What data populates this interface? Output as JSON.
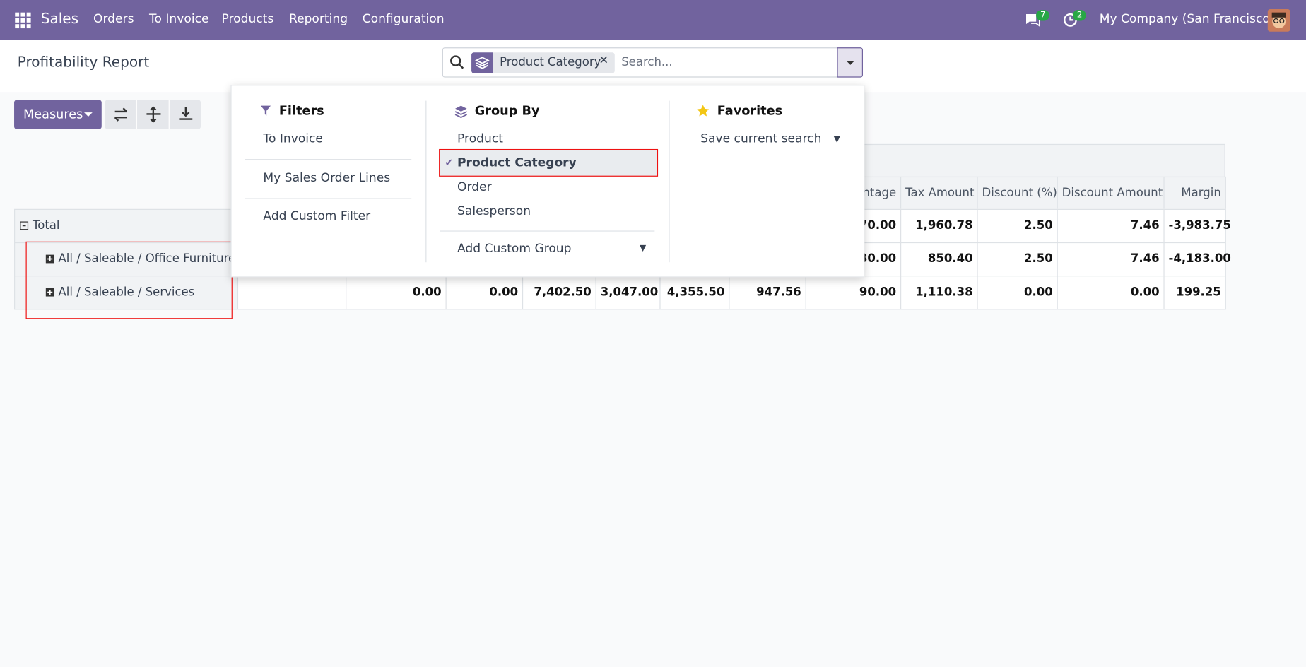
{
  "nav": {
    "app": "Sales",
    "menu": [
      "Orders",
      "To Invoice",
      "Products",
      "Reporting",
      "Configuration"
    ],
    "messages_badge": "7",
    "activity_badge": "2",
    "company": "My Company (San Francisco)"
  },
  "breadcrumb": "Profitability Report",
  "search": {
    "facet": "Product Category",
    "placeholder": "Search..."
  },
  "toolbar": {
    "measures": "Measures"
  },
  "dropdown": {
    "filters": {
      "title": "Filters",
      "items": [
        "To Invoice",
        "My Sales Order Lines",
        "Add Custom Filter"
      ]
    },
    "group_by": {
      "title": "Group By",
      "items": [
        "Product",
        "Product Category",
        "Order",
        "Salesperson"
      ],
      "custom": "Add Custom Group"
    },
    "favorites": {
      "title": "Favorites",
      "items": [
        "Save current search"
      ]
    }
  },
  "table": {
    "headers": [
      null,
      null,
      null,
      null,
      null,
      null,
      null,
      "ntage",
      "Tax Amount",
      "Discount (%)",
      "Discount Amount",
      "Margin"
    ],
    "rows": [
      {
        "label": "Total",
        "cells": [
          null,
          null,
          null,
          null,
          null,
          null,
          null,
          "70.00",
          "1,960.78",
          "2.50",
          "7.46",
          "-3,983.75"
        ]
      },
      {
        "label": "All / Saleable / Office Furniture",
        "cells": [
          null,
          null,
          null,
          null,
          null,
          null,
          null,
          "80.00",
          "850.40",
          "2.50",
          "7.46",
          "-4,183.00"
        ]
      },
      {
        "label": "All / Saleable / Services",
        "cells": [
          null,
          "0.00",
          "0.00",
          "7,402.50",
          "3,047.00",
          "4,355.50",
          "947.56",
          "90.00",
          "1,110.38",
          "0.00",
          "0.00",
          "199.25"
        ]
      }
    ]
  }
}
